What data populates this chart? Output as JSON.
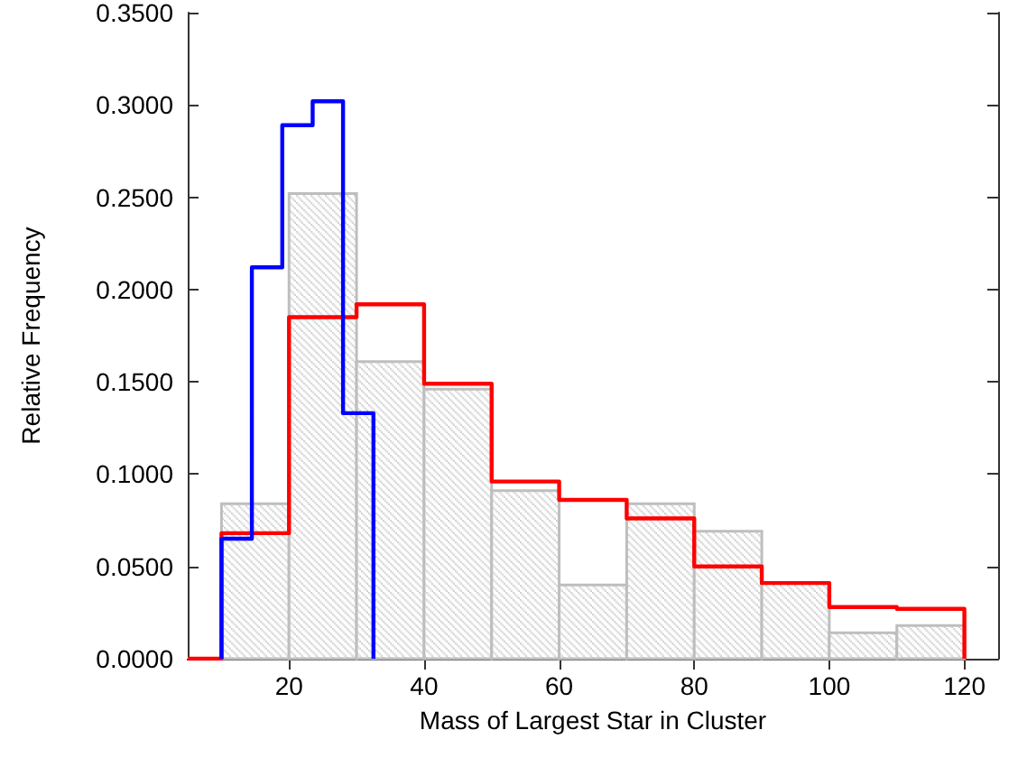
{
  "chart_data": {
    "type": "histogram",
    "xlabel": "Mass of Largest Star in Cluster",
    "ylabel": "Relative Frequency",
    "xlim": [
      5,
      125
    ],
    "ylim": [
      0,
      0.35
    ],
    "xticks": [
      20,
      40,
      60,
      80,
      100,
      120
    ],
    "yticks": [
      {
        "value": 0,
        "label": "0.0000"
      },
      {
        "value": 0.05,
        "label": "0.0500"
      },
      {
        "value": 0.1,
        "label": "0.1000"
      },
      {
        "value": 0.15,
        "label": "0.1500"
      },
      {
        "value": 0.2,
        "label": "0.2000"
      },
      {
        "value": 0.25,
        "label": "0.2500"
      },
      {
        "value": 0.3,
        "label": "0.3000"
      },
      {
        "value": 0.35,
        "label": "0.3500"
      }
    ],
    "grid": false,
    "color": "#bebebe",
    "bins": [
      10,
      20,
      30,
      40,
      50,
      60,
      70,
      80,
      90,
      100,
      110,
      120
    ],
    "values": [
      0.084,
      0.252,
      0.161,
      0.146,
      0.091,
      0.04,
      0.084,
      0.069,
      0.041,
      0.014,
      0.018
    ],
    "series": [
      {
        "type": "step",
        "color": "#ff0000",
        "x": [
          5,
          10,
          20,
          30,
          40,
          50,
          60,
          70,
          80,
          90,
          100,
          110,
          120
        ],
        "values": [
          0,
          0.068,
          0.185,
          0.192,
          0.149,
          0.096,
          0.086,
          0.076,
          0.05,
          0.041,
          0.028,
          0.027,
          0
        ]
      },
      {
        "type": "step",
        "color": "#0000ff",
        "x": [
          10,
          10,
          14.5,
          19,
          23.5,
          28,
          32.5
        ],
        "values": [
          0,
          0.065,
          0.212,
          0.289,
          0.302,
          0.133,
          0
        ]
      }
    ]
  }
}
